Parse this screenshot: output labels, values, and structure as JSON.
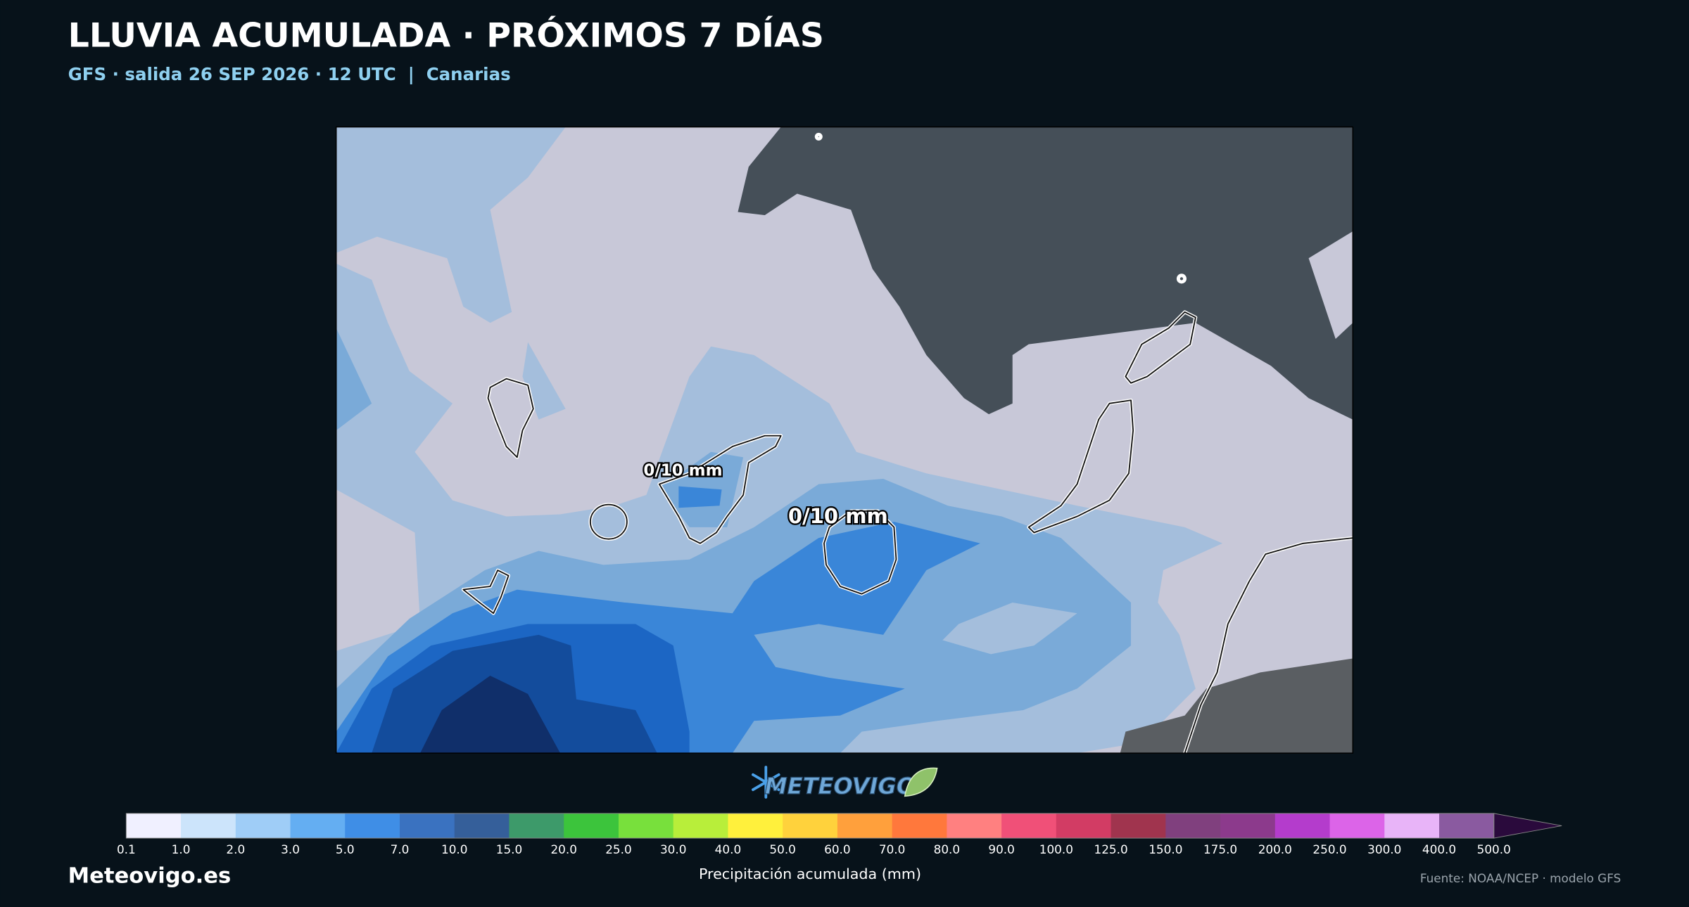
{
  "header": {
    "title": "LLUVIA ACUMULADA · PRÓXIMOS 7 DÍAS",
    "subtitle": "GFS · salida 26 SEP 2026 · 12 UTC  |  Canarias"
  },
  "map": {
    "labels": [
      "0/10 mm",
      "0/10 mm"
    ]
  },
  "logo": {
    "text": "METEOVIGO"
  },
  "colorbar": {
    "ticks": [
      "0.1",
      "1.0",
      "2.0",
      "3.0",
      "5.0",
      "7.0",
      "10.0",
      "15.0",
      "20.0",
      "25.0",
      "30.0",
      "40.0",
      "50.0",
      "60.0",
      "70.0",
      "80.0",
      "90.0",
      "100.0",
      "125.0",
      "150.0",
      "175.0",
      "200.0",
      "250.0",
      "300.0",
      "400.0",
      "500.0"
    ],
    "colors": [
      "#f0f0ff",
      "#cce4fb",
      "#9fcdf7",
      "#64aef2",
      "#3f8ee6",
      "#3a72c0",
      "#355f9a",
      "#3d9a6a",
      "#3cc43c",
      "#78e03c",
      "#b8ee3a",
      "#fff03c",
      "#ffd23c",
      "#ffa03c",
      "#ff783c",
      "#ff8080",
      "#f05078",
      "#d23c64",
      "#a0344e",
      "#80407e",
      "#8c3a8c",
      "#b43ccc",
      "#dc64e8",
      "#e8b4f8",
      "#8a5aa0"
    ],
    "extend_color": "#2a0a3c",
    "title": "Precipitación acumulada (mm)"
  },
  "footer": {
    "site": "Meteovigo.es",
    "source": "Fuente: NOAA/NCEP · modelo GFS"
  }
}
